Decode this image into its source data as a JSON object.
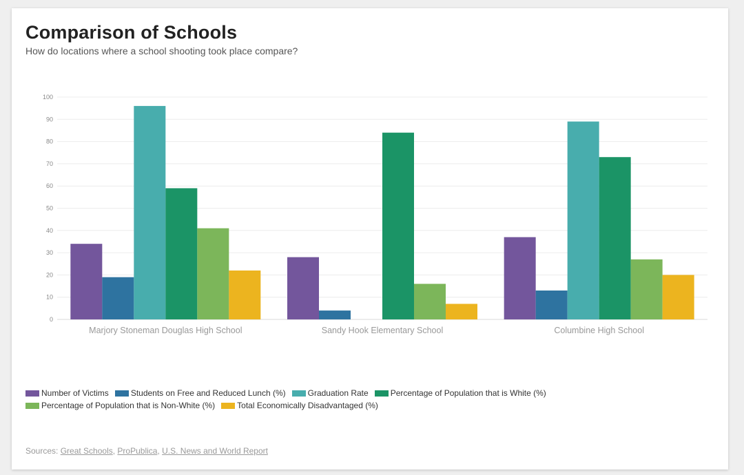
{
  "title": "Comparison of Schools",
  "subtitle": "How do locations where a school shooting took place compare?",
  "sources": {
    "prefix": "Sources:",
    "links": [
      "Great Schools",
      "ProPublica",
      "U.S. News and World Report"
    ]
  },
  "chart_data": {
    "type": "bar",
    "categories": [
      "Marjory Stoneman Douglas High School",
      "Sandy Hook Elementary School",
      "Columbine High School"
    ],
    "ylim": [
      0,
      100
    ],
    "yticks": [
      0,
      10,
      20,
      30,
      40,
      50,
      60,
      70,
      80,
      90,
      100
    ],
    "grid": true,
    "legend_position": "bottom",
    "series": [
      {
        "name": "Number of Victims",
        "color": "#73569c",
        "values": [
          34,
          28,
          37
        ]
      },
      {
        "name": "Students on Free and Reduced Lunch (%)",
        "color": "#2e73a0",
        "values": [
          19,
          4,
          13
        ]
      },
      {
        "name": "Graduation Rate",
        "color": "#48adad",
        "values": [
          96,
          null,
          89
        ]
      },
      {
        "name": "Percentage of Population that is White (%)",
        "color": "#1b9466",
        "values": [
          59,
          84,
          73
        ]
      },
      {
        "name": "Percentage of Population that is Non-White (%)",
        "color": "#7cb65a",
        "values": [
          41,
          16,
          27
        ]
      },
      {
        "name": "Total Economically Disadvantaged (%)",
        "color": "#ecb41f",
        "values": [
          22,
          7,
          20
        ]
      }
    ]
  }
}
